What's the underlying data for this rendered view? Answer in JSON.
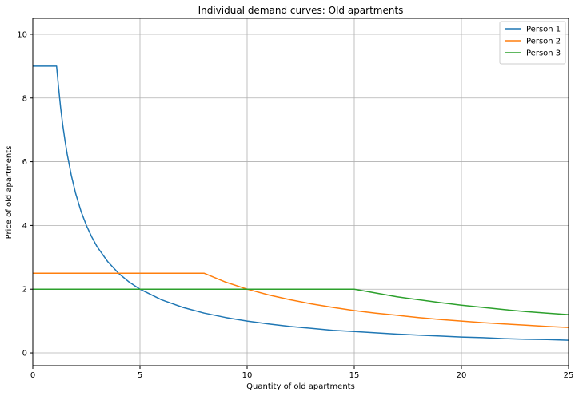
{
  "chart_data": {
    "type": "line",
    "title": "Individual demand curves: Old apartments",
    "xlabel": "Quantity of old apartments",
    "ylabel": "Price of old apartments",
    "xlim": [
      0,
      25
    ],
    "ylim": [
      -0.4,
      10.5
    ],
    "xticks": [
      0,
      5,
      10,
      15,
      20,
      25
    ],
    "yticks": [
      0,
      2,
      4,
      6,
      8,
      10
    ],
    "grid": true,
    "legend_position": "top-right",
    "series": [
      {
        "name": "Person 1",
        "color": "#1f77b4",
        "x": [
          0,
          1.11,
          1.2,
          1.3,
          1.4,
          1.5,
          1.6,
          1.8,
          2,
          2.25,
          2.5,
          2.75,
          3,
          3.5,
          4,
          4.5,
          5,
          6,
          7,
          8,
          9,
          10,
          11,
          12,
          13,
          14,
          15,
          16,
          17,
          18,
          19,
          20,
          21,
          22,
          23,
          24,
          25
        ],
        "y": [
          9.0,
          9.0,
          8.33,
          7.69,
          7.14,
          6.67,
          6.25,
          5.56,
          5.0,
          4.44,
          4.0,
          3.64,
          3.33,
          2.86,
          2.5,
          2.22,
          2.0,
          1.67,
          1.43,
          1.25,
          1.11,
          1.0,
          0.91,
          0.83,
          0.77,
          0.71,
          0.67,
          0.63,
          0.59,
          0.56,
          0.53,
          0.5,
          0.48,
          0.45,
          0.43,
          0.42,
          0.4
        ]
      },
      {
        "name": "Person 2",
        "color": "#ff7f0e",
        "x": [
          0,
          8,
          9,
          10,
          11,
          12,
          13,
          14,
          15,
          16,
          17,
          18,
          19,
          20,
          21,
          22,
          23,
          24,
          25
        ],
        "y": [
          2.5,
          2.5,
          2.22,
          2.0,
          1.82,
          1.67,
          1.54,
          1.43,
          1.33,
          1.25,
          1.18,
          1.11,
          1.05,
          1.0,
          0.95,
          0.91,
          0.87,
          0.83,
          0.8
        ]
      },
      {
        "name": "Person 3",
        "color": "#2ca02c",
        "x": [
          0,
          15,
          16,
          17,
          18,
          19,
          20,
          21,
          22,
          23,
          24,
          25
        ],
        "y": [
          2.0,
          2.0,
          1.88,
          1.76,
          1.67,
          1.58,
          1.5,
          1.43,
          1.36,
          1.3,
          1.25,
          1.2
        ]
      }
    ]
  }
}
